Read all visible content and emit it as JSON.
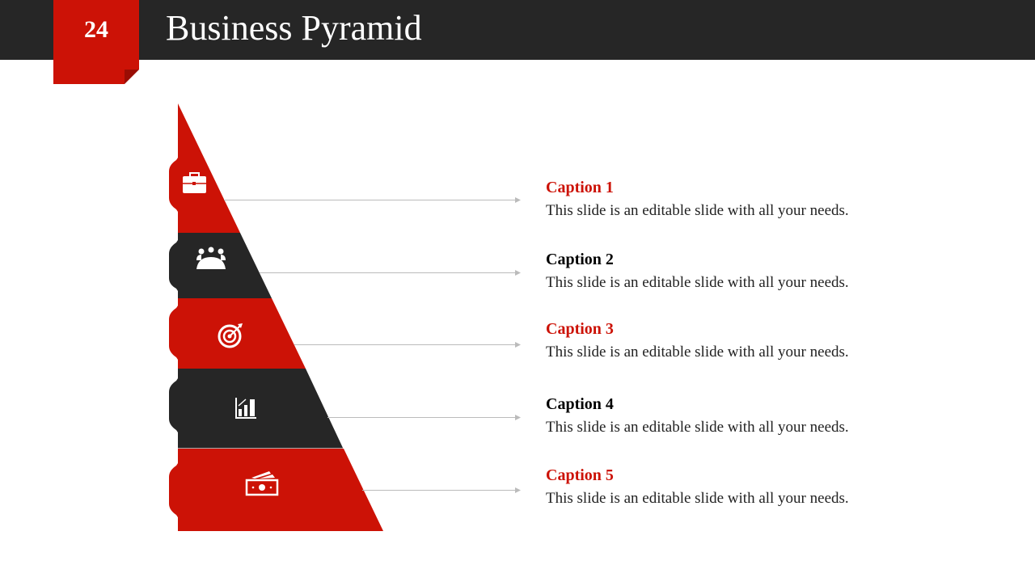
{
  "header": {
    "slide_number": "24",
    "title": "Business Pyramid"
  },
  "colors": {
    "red": "#cc1206",
    "dark": "#262626"
  },
  "levels": [
    {
      "icon": "briefcase-icon",
      "caption": "Caption 1",
      "text": "This slide is an editable slide with all your needs.",
      "color": "#cc1206"
    },
    {
      "icon": "team-icon",
      "caption": "Caption 2",
      "text": "This slide is an editable slide with all your needs.",
      "color": "#000000"
    },
    {
      "icon": "target-icon",
      "caption": "Caption 3",
      "text": "This slide is an editable slide with all your needs.",
      "color": "#cc1206"
    },
    {
      "icon": "bar-chart-icon",
      "caption": "Caption 4",
      "text": "This slide is an editable slide with all your needs.",
      "color": "#000000"
    },
    {
      "icon": "money-icon",
      "caption": "Caption 5",
      "text": "This slide is an editable slide with all your needs.",
      "color": "#cc1206"
    }
  ]
}
